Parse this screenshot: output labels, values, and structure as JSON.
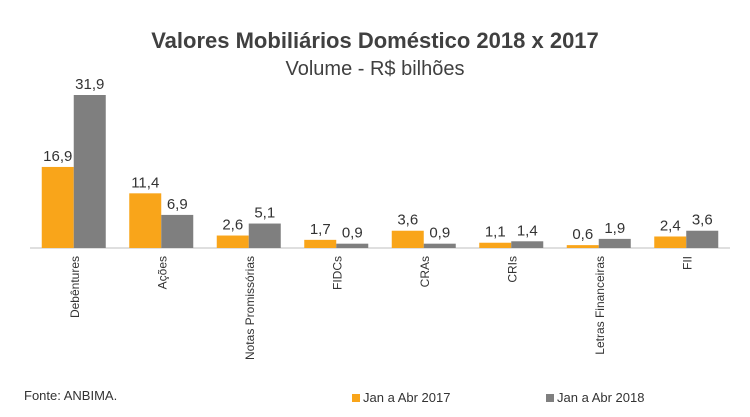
{
  "chart_data": {
    "type": "bar",
    "title": "Valores Mobiliários Doméstico 2018 x 2017",
    "subtitle": "Volume - R$ bilhões",
    "categories": [
      "Debêntures",
      "Ações",
      "Notas Promissórias",
      "FIDCs",
      "CRAs",
      "CRIs",
      "Letras Financeiras",
      "FII"
    ],
    "series": [
      {
        "name": "Jan a Abr 2017",
        "color": "#F9A51A",
        "values": [
          16.9,
          11.4,
          2.6,
          1.7,
          3.6,
          1.1,
          0.6,
          2.4
        ],
        "labels": [
          "16,9",
          "11,4",
          "2,6",
          "1,7",
          "3,6",
          "1,1",
          "0,6",
          "2,4"
        ]
      },
      {
        "name": "Jan a Abr 2018",
        "color": "#7F7F7F",
        "values": [
          31.9,
          6.9,
          5.1,
          0.9,
          0.9,
          1.4,
          1.9,
          3.6
        ],
        "labels": [
          "31,9",
          "6,9",
          "5,1",
          "0,9",
          "0,9",
          "1,4",
          "1,9",
          "3,6"
        ]
      }
    ],
    "legend": "bottom-right",
    "grid": false,
    "source": "Fonte: ANBIMA."
  }
}
